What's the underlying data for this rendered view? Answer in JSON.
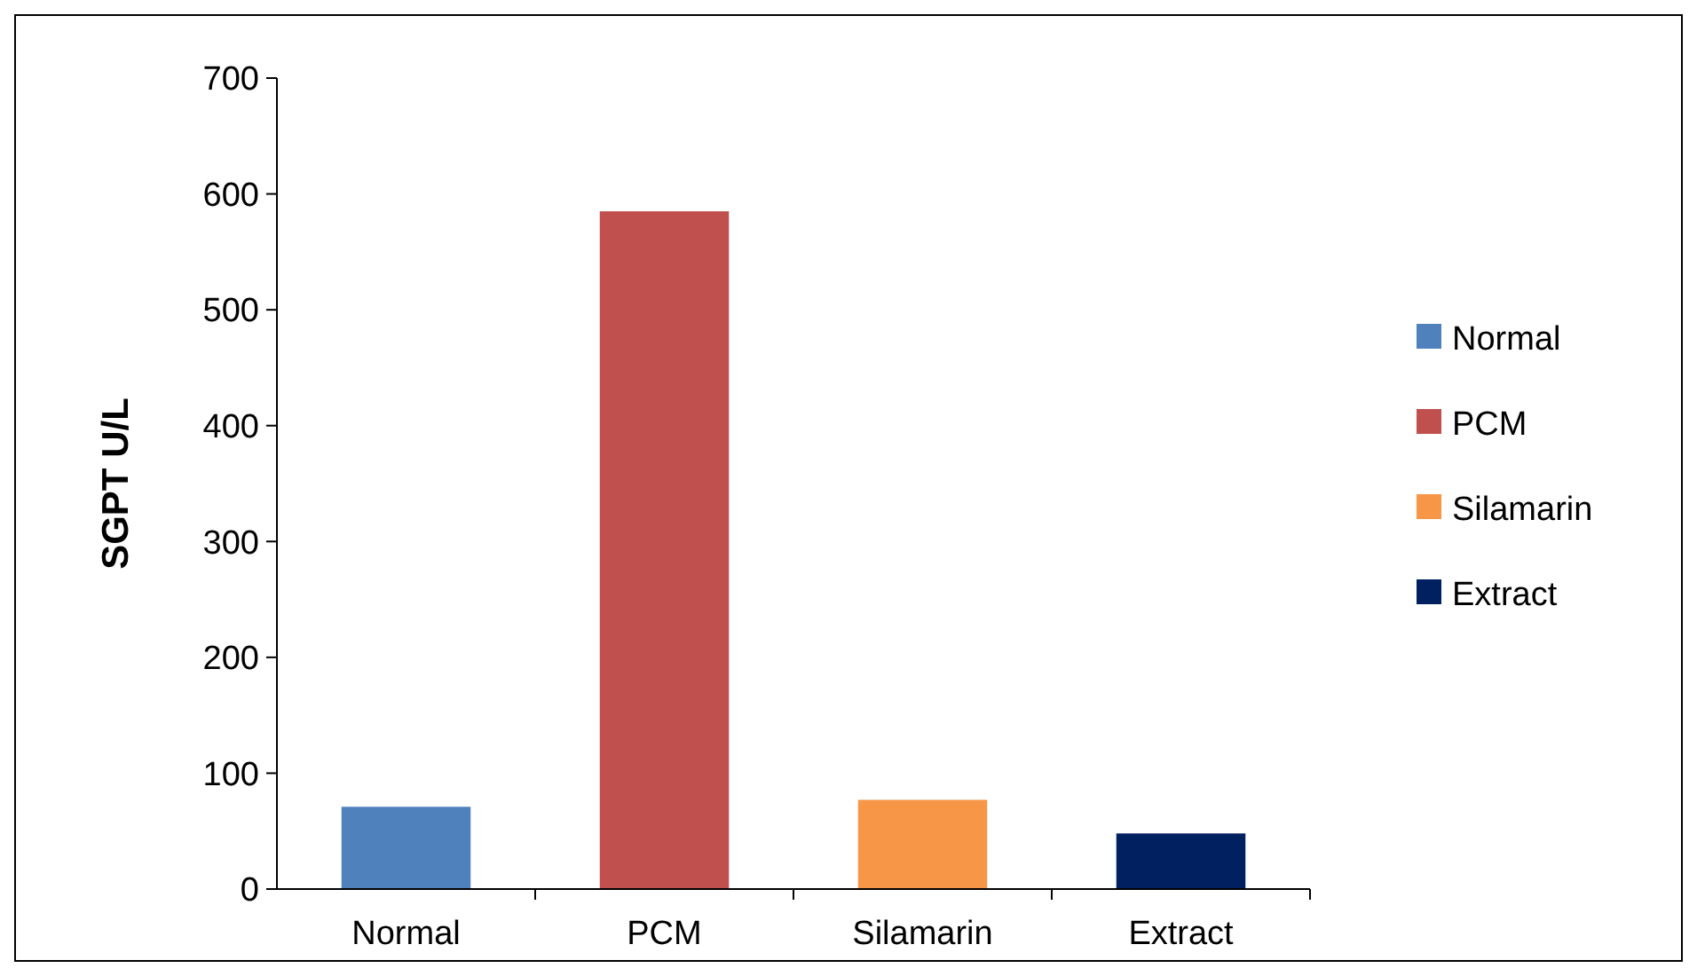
{
  "chart_data": {
    "type": "bar",
    "ylabel": "SGPT U/L",
    "categories": [
      "Normal",
      "PCM",
      "Silamarin",
      "Extract"
    ],
    "series": [
      {
        "name": "Normal",
        "color": "#4f81bd",
        "values": [
          71,
          null,
          null,
          null
        ]
      },
      {
        "name": "PCM",
        "color": "#c0504d",
        "values": [
          null,
          585,
          null,
          null
        ]
      },
      {
        "name": "Silamarin",
        "color": "#f79646",
        "values": [
          null,
          null,
          77,
          null
        ]
      },
      {
        "name": "Extract",
        "color": "#002060",
        "values": [
          null,
          null,
          null,
          48
        ]
      }
    ],
    "ylim": [
      0,
      700
    ],
    "yticks": [
      0,
      100,
      200,
      300,
      400,
      500,
      600,
      700
    ],
    "grid": false,
    "legend": "right"
  }
}
